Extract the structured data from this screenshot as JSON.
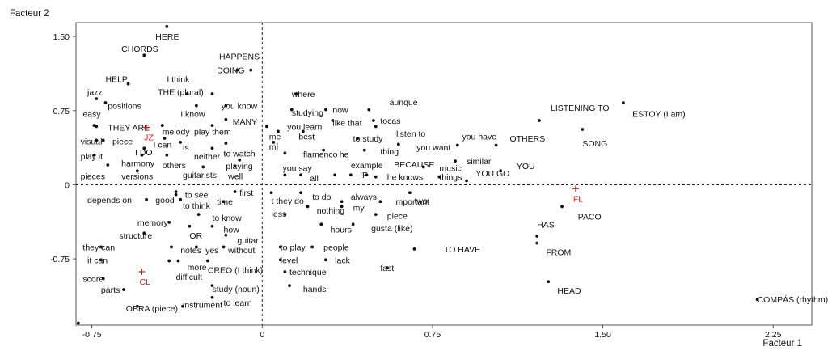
{
  "chart_data": {
    "type": "scatter",
    "title": "",
    "xlabel": "Facteur 1",
    "ylabel": "Facteur 2",
    "xlim": [
      -0.82,
      2.42
    ],
    "ylim": [
      -1.42,
      1.64
    ],
    "xticks": [
      {
        "value": -0.75,
        "label": "-0.75"
      },
      {
        "value": 0,
        "label": "0"
      },
      {
        "value": 0.75,
        "label": "0.75"
      },
      {
        "value": 1.5,
        "label": "1.50"
      },
      {
        "value": 2.25,
        "label": "2.25"
      }
    ],
    "yticks": [
      {
        "value": 1.5,
        "label": "1.50"
      },
      {
        "value": 0.75,
        "label": "0.75"
      },
      {
        "value": 0,
        "label": "0"
      },
      {
        "value": -0.75,
        "label": "-0.75"
      }
    ],
    "reference_lines": {
      "x": 0,
      "y": 0,
      "style": "dashed"
    },
    "colors": {
      "words": "#111111",
      "groups": "#cc2222",
      "frame": "#555555"
    },
    "groups": [
      {
        "label": "JZ",
        "x": -0.51,
        "y": 0.58
      },
      {
        "label": "CL",
        "x": -0.53,
        "y": -0.88
      },
      {
        "label": "FL",
        "x": 1.38,
        "y": -0.04
      }
    ],
    "points": [
      {
        "label": "HERE",
        "x": -0.42,
        "y": 1.6,
        "lx": -0.47,
        "ly": 1.5
      },
      {
        "label": "CHORDS",
        "x": -0.52,
        "y": 1.31,
        "lx": -0.62,
        "ly": 1.38
      },
      {
        "label": "HAPPENS",
        "x": -0.11,
        "y": 1.16,
        "lx": -0.19,
        "ly": 1.3
      },
      {
        "label": "DOING",
        "x": -0.05,
        "y": 1.16,
        "lx": -0.2,
        "ly": 1.16
      },
      {
        "label": "HELP",
        "x": -0.59,
        "y": 1.02,
        "lx": -0.69,
        "ly": 1.07
      },
      {
        "label": "I think",
        "x": -0.33,
        "y": 0.92,
        "lx": -0.42,
        "ly": 1.07
      },
      {
        "label": "THE (plural)",
        "x": -0.22,
        "y": 0.92,
        "lx": -0.46,
        "ly": 0.94
      },
      {
        "label": "jazz",
        "x": -0.73,
        "y": 0.87,
        "lx": -0.77,
        "ly": 0.94
      },
      {
        "label": "positions",
        "x": -0.69,
        "y": 0.83,
        "lx": -0.68,
        "ly": 0.8
      },
      {
        "label": "I know",
        "x": -0.29,
        "y": 0.8,
        "lx": -0.36,
        "ly": 0.72
      },
      {
        "label": "you know",
        "x": -0.16,
        "y": 0.8,
        "lx": -0.18,
        "ly": 0.8
      },
      {
        "label": "easy",
        "x": -0.74,
        "y": 0.6,
        "lx": -0.79,
        "ly": 0.72
      },
      {
        "label": "MANY",
        "x": -0.16,
        "y": 0.66,
        "lx": -0.13,
        "ly": 0.64
      },
      {
        "label": "THEY ARE",
        "x": -0.73,
        "y": 0.59,
        "lx": -0.68,
        "ly": 0.58
      },
      {
        "label": "melody",
        "x": -0.44,
        "y": 0.6,
        "lx": -0.44,
        "ly": 0.54
      },
      {
        "label": "play them",
        "x": -0.22,
        "y": 0.6,
        "lx": -0.3,
        "ly": 0.54
      },
      {
        "label": "visual",
        "x": -0.73,
        "y": 0.45,
        "lx": -0.8,
        "ly": 0.44
      },
      {
        "label": "piece",
        "x": -0.7,
        "y": 0.45,
        "lx": -0.66,
        "ly": 0.44
      },
      {
        "label": "I can",
        "x": -0.43,
        "y": 0.47,
        "lx": -0.48,
        "ly": 0.41
      },
      {
        "label": "is",
        "x": -0.36,
        "y": 0.43,
        "lx": -0.35,
        "ly": 0.38
      },
      {
        "label": "to watch",
        "x": -0.16,
        "y": 0.42,
        "lx": -0.17,
        "ly": 0.32
      },
      {
        "label": "I DO",
        "x": -0.52,
        "y": 0.37,
        "lx": -0.56,
        "ly": 0.33
      },
      {
        "label": "neither",
        "x": -0.22,
        "y": 0.37,
        "lx": -0.3,
        "ly": 0.29
      },
      {
        "label": "play it",
        "x": -0.74,
        "y": 0.3,
        "lx": -0.8,
        "ly": 0.29
      },
      {
        "label": "harmony",
        "x": -0.53,
        "y": 0.3,
        "lx": -0.62,
        "ly": 0.22
      },
      {
        "label": "others",
        "x": -0.42,
        "y": 0.3,
        "lx": -0.44,
        "ly": 0.2
      },
      {
        "label": "playing",
        "x": -0.1,
        "y": 0.25,
        "lx": -0.16,
        "ly": 0.19
      },
      {
        "label": "pieces",
        "x": -0.68,
        "y": 0.2,
        "lx": -0.8,
        "ly": 0.09
      },
      {
        "label": "versions",
        "x": -0.55,
        "y": 0.14,
        "lx": -0.62,
        "ly": 0.09
      },
      {
        "label": "guitarists",
        "x": -0.26,
        "y": 0.18,
        "lx": -0.35,
        "ly": 0.1
      },
      {
        "label": "well",
        "x": -0.12,
        "y": 0.19,
        "lx": -0.15,
        "ly": 0.09
      },
      {
        "label": "depends on",
        "x": -0.51,
        "y": -0.15,
        "lx": -0.77,
        "ly": -0.15
      },
      {
        "label": "good",
        "x": -0.36,
        "y": -0.15,
        "lx": -0.47,
        "ly": -0.15
      },
      {
        "label": "to see",
        "x": -0.38,
        "y": -0.07,
        "lx": -0.34,
        "ly": -0.1
      },
      {
        "label": "to think",
        "x": -0.38,
        "y": -0.1,
        "lx": -0.35,
        "ly": -0.21
      },
      {
        "label": "time",
        "x": -0.17,
        "y": -0.17,
        "lx": -0.2,
        "ly": -0.17
      },
      {
        "label": "first",
        "x": -0.12,
        "y": -0.07,
        "lx": -0.1,
        "ly": -0.08
      },
      {
        "label": "to know",
        "x": -0.28,
        "y": -0.3,
        "lx": -0.22,
        "ly": -0.33
      },
      {
        "label": "memory",
        "x": -0.41,
        "y": -0.38,
        "lx": -0.55,
        "ly": -0.38
      },
      {
        "label": "OR",
        "x": -0.32,
        "y": -0.42,
        "lx": -0.32,
        "ly": -0.51
      },
      {
        "label": "how",
        "x": -0.22,
        "y": -0.42,
        "lx": -0.17,
        "ly": -0.45
      },
      {
        "label": "structure",
        "x": -0.52,
        "y": -0.49,
        "lx": -0.63,
        "ly": -0.51
      },
      {
        "label": "guitar",
        "x": -0.16,
        "y": -0.51,
        "lx": -0.11,
        "ly": -0.56
      },
      {
        "label": "they can",
        "x": -0.71,
        "y": -0.63,
        "lx": -0.79,
        "ly": -0.63
      },
      {
        "label": "notes",
        "x": -0.4,
        "y": -0.63,
        "lx": -0.36,
        "ly": -0.66
      },
      {
        "label": "yes",
        "x": -0.29,
        "y": -0.63,
        "lx": -0.25,
        "ly": -0.66
      },
      {
        "label": "without",
        "x": -0.17,
        "y": -0.63,
        "lx": -0.15,
        "ly": -0.66
      },
      {
        "label": "it can",
        "x": -0.71,
        "y": -0.76,
        "lx": -0.77,
        "ly": -0.76
      },
      {
        "label": "more",
        "x": -0.37,
        "y": -0.77,
        "lx": -0.33,
        "ly": -0.83
      },
      {
        "label": "difficult",
        "x": -0.41,
        "y": -0.77,
        "lx": -0.38,
        "ly": -0.93
      },
      {
        "label": "CREO (I think)",
        "x": -0.24,
        "y": -0.77,
        "lx": -0.24,
        "ly": -0.86
      },
      {
        "label": "score",
        "x": -0.7,
        "y": -0.95,
        "lx": -0.79,
        "ly": -0.95
      },
      {
        "label": "parts",
        "x": -0.61,
        "y": -1.06,
        "lx": -0.71,
        "ly": -1.06
      },
      {
        "label": "study (noun)",
        "x": -0.22,
        "y": -1.02,
        "lx": -0.22,
        "ly": -1.05
      },
      {
        "label": "to learn",
        "x": -0.22,
        "y": -1.14,
        "lx": -0.17,
        "ly": -1.19
      },
      {
        "label": "OBRA (piece)",
        "x": -0.55,
        "y": -1.23,
        "lx": -0.6,
        "ly": -1.25
      },
      {
        "label": "instrument",
        "x": -0.35,
        "y": -1.23,
        "lx": -0.35,
        "ly": -1.21
      },
      {
        "label": "where",
        "x": 0.15,
        "y": 0.92,
        "lx": 0.13,
        "ly": 0.92
      },
      {
        "label": "studying",
        "x": 0.13,
        "y": 0.76,
        "lx": 0.13,
        "ly": 0.73
      },
      {
        "label": "now",
        "x": 0.28,
        "y": 0.76,
        "lx": 0.31,
        "ly": 0.76
      },
      {
        "label": "aunque",
        "x": 0.47,
        "y": 0.76,
        "lx": 0.56,
        "ly": 0.84
      },
      {
        "label": "tocas",
        "x": 0.49,
        "y": 0.65,
        "lx": 0.52,
        "ly": 0.65
      },
      {
        "label": "you learn",
        "x": 0.02,
        "y": 0.59,
        "lx": 0.11,
        "ly": 0.59
      },
      {
        "label": "like that",
        "x": 0.31,
        "y": 0.65,
        "lx": 0.31,
        "ly": 0.63
      },
      {
        "label": "listen to",
        "x": 0.5,
        "y": 0.59,
        "lx": 0.59,
        "ly": 0.52
      },
      {
        "label": "me",
        "x": 0.07,
        "y": 0.54,
        "lx": 0.03,
        "ly": 0.49
      },
      {
        "label": "best",
        "x": 0.18,
        "y": 0.54,
        "lx": 0.16,
        "ly": 0.49
      },
      {
        "label": "to study",
        "x": 0.42,
        "y": 0.47,
        "lx": 0.4,
        "ly": 0.47
      },
      {
        "label": "mí",
        "x": 0.05,
        "y": 0.43,
        "lx": 0.03,
        "ly": 0.39
      },
      {
        "label": "flamenco",
        "x": 0.1,
        "y": 0.32,
        "lx": 0.18,
        "ly": 0.31
      },
      {
        "label": "he",
        "x": 0.27,
        "y": 0.35,
        "lx": 0.34,
        "ly": 0.31
      },
      {
        "label": "thing",
        "x": 0.45,
        "y": 0.35,
        "lx": 0.52,
        "ly": 0.34
      },
      {
        "label": "you want",
        "x": 0.6,
        "y": 0.41,
        "lx": 0.68,
        "ly": 0.38
      },
      {
        "label": "you say",
        "x": 0.1,
        "y": 0.1,
        "lx": 0.09,
        "ly": 0.17
      },
      {
        "label": "all",
        "x": 0.17,
        "y": 0.1,
        "lx": 0.21,
        "ly": 0.07
      },
      {
        "label": "example",
        "x": 0.32,
        "y": 0.1,
        "lx": 0.39,
        "ly": 0.2
      },
      {
        "label": "IF",
        "x": 0.39,
        "y": 0.1,
        "lx": 0.43,
        "ly": 0.1
      },
      {
        "label": "BECAUSE",
        "x": 0.46,
        "y": 0.1,
        "lx": 0.58,
        "ly": 0.21
      },
      {
        "label": "he knows",
        "x": 0.5,
        "y": 0.08,
        "lx": 0.55,
        "ly": 0.08
      },
      {
        "label": "music",
        "x": 0.71,
        "y": 0.18,
        "lx": 0.78,
        "ly": 0.17
      },
      {
        "label": "things",
        "x": 0.78,
        "y": 0.08,
        "lx": 0.78,
        "ly": 0.08
      },
      {
        "label": "you have",
        "x": 0.86,
        "y": 0.4,
        "lx": 0.88,
        "ly": 0.49
      },
      {
        "label": "similar",
        "x": 0.85,
        "y": 0.24,
        "lx": 0.9,
        "ly": 0.24
      },
      {
        "label": "YOU GO",
        "x": 0.9,
        "y": 0.04,
        "lx": 0.94,
        "ly": 0.12
      },
      {
        "label": "OTHERS",
        "x": 1.03,
        "y": 0.4,
        "lx": 1.09,
        "ly": 0.47
      },
      {
        "label": "YOU",
        "x": 1.05,
        "y": 0.14,
        "lx": 1.12,
        "ly": 0.19
      },
      {
        "label": "LISTENING TO",
        "x": 1.22,
        "y": 0.65,
        "lx": 1.27,
        "ly": 0.78
      },
      {
        "label": "SONG",
        "x": 1.41,
        "y": 0.56,
        "lx": 1.41,
        "ly": 0.42
      },
      {
        "label": "ESTOY (I am)",
        "x": 1.59,
        "y": 0.83,
        "lx": 1.63,
        "ly": 0.72
      },
      {
        "label": "t they do",
        "x": 0.04,
        "y": -0.08,
        "lx": 0.04,
        "ly": -0.16
      },
      {
        "label": "to do",
        "x": 0.17,
        "y": -0.08,
        "lx": 0.22,
        "ly": -0.12
      },
      {
        "label": "always",
        "x": 0.35,
        "y": -0.17,
        "lx": 0.39,
        "ly": -0.12
      },
      {
        "label": "important",
        "x": 0.52,
        "y": -0.17,
        "lx": 0.58,
        "ly": -0.17
      },
      {
        "label": "two",
        "x": 0.65,
        "y": -0.08,
        "lx": 0.67,
        "ly": -0.16
      },
      {
        "label": "less",
        "x": 0.1,
        "y": -0.3,
        "lx": 0.04,
        "ly": -0.29
      },
      {
        "label": "nothing",
        "x": 0.2,
        "y": -0.22,
        "lx": 0.24,
        "ly": -0.26
      },
      {
        "label": "my",
        "x": 0.35,
        "y": -0.22,
        "lx": 0.4,
        "ly": -0.23
      },
      {
        "label": "piece",
        "x": 0.5,
        "y": -0.3,
        "lx": 0.55,
        "ly": -0.31
      },
      {
        "label": "hours",
        "x": 0.26,
        "y": -0.4,
        "lx": 0.3,
        "ly": -0.45
      },
      {
        "label": "gusta (like)",
        "x": 0.4,
        "y": -0.4,
        "lx": 0.48,
        "ly": -0.44
      },
      {
        "label": "to play",
        "x": 0.08,
        "y": -0.63,
        "lx": 0.08,
        "ly": -0.63
      },
      {
        "label": "people",
        "x": 0.22,
        "y": -0.63,
        "lx": 0.27,
        "ly": -0.63
      },
      {
        "label": "TO HAVE",
        "x": 0.67,
        "y": -0.65,
        "lx": 0.8,
        "ly": -0.65
      },
      {
        "label": "level",
        "x": 0.08,
        "y": -0.76,
        "lx": 0.08,
        "ly": -0.76
      },
      {
        "label": "lack",
        "x": 0.28,
        "y": -0.76,
        "lx": 0.32,
        "ly": -0.76
      },
      {
        "label": "technique",
        "x": 0.1,
        "y": -0.88,
        "lx": 0.12,
        "ly": -0.88
      },
      {
        "label": "fast",
        "x": 0.55,
        "y": -0.84,
        "lx": 0.52,
        "ly": -0.84
      },
      {
        "label": "hands",
        "x": 0.12,
        "y": -1.02,
        "lx": 0.18,
        "ly": -1.05
      },
      {
        "label": "HAS",
        "x": 1.21,
        "y": -0.52,
        "lx": 1.21,
        "ly": -0.4
      },
      {
        "label": "PACO",
        "x": 1.32,
        "y": -0.22,
        "lx": 1.39,
        "ly": -0.32
      },
      {
        "label": "FROM",
        "x": 1.21,
        "y": -0.59,
        "lx": 1.25,
        "ly": -0.68
      },
      {
        "label": "HEAD",
        "x": 1.26,
        "y": -0.98,
        "lx": 1.3,
        "ly": -1.07
      },
      {
        "label": "COMPÁS (rhythm)",
        "x": 2.18,
        "y": -1.16,
        "lx": 2.18,
        "ly": -1.16
      },
      {
        "label": "",
        "x": -0.81,
        "y": -1.4,
        "lx": -0.81,
        "ly": -1.4
      }
    ]
  }
}
